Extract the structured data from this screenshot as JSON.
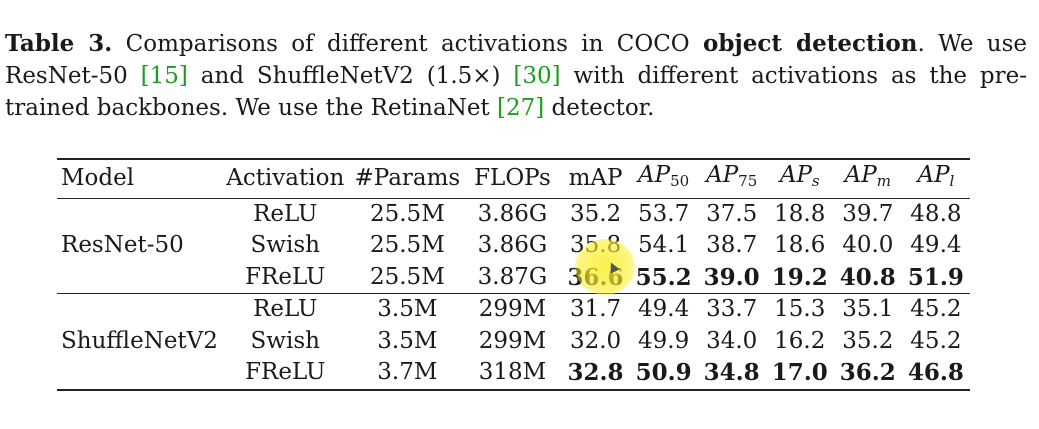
{
  "caption": {
    "label": "Table 3.",
    "text_1": " Comparisons of different activations in COCO ",
    "bold_phrase": "object detection",
    "text_2": ". We use ResNet-50 ",
    "cite_1": "[15]",
    "text_3": " and ShuffleNetV2 (1.5×) ",
    "cite_2": "[30]",
    "text_4": " with different activations as the pre-trained backbones. We use the RetinaNet ",
    "cite_3": "[27]",
    "text_5": " detector."
  },
  "table": {
    "headers": {
      "model": "Model",
      "activation": "Activation",
      "params": "#Params",
      "flops": "FLOPs",
      "map": "mAP",
      "ap_main": "AP",
      "ap50_sub": "50",
      "ap75_sub": "75",
      "aps_sub": "s",
      "apm_sub": "m",
      "apl_sub": "l"
    },
    "groups": [
      {
        "model": "ResNet-50",
        "rows": [
          {
            "activation": "ReLU",
            "params": "25.5M",
            "flops": "3.86G",
            "map": "35.2",
            "ap50": "53.7",
            "ap75": "37.5",
            "aps": "18.8",
            "apm": "39.7",
            "apl": "48.8"
          },
          {
            "activation": "Swish",
            "params": "25.5M",
            "flops": "3.86G",
            "map": "35.8",
            "ap50": "54.1",
            "ap75": "38.7",
            "aps": "18.6",
            "apm": "40.0",
            "apl": "49.4"
          },
          {
            "activation": "FReLU",
            "params": "25.5M",
            "flops": "3.87G",
            "map": "36.6",
            "ap50": "55.2",
            "ap75": "39.0",
            "aps": "19.2",
            "apm": "40.8",
            "apl": "51.9"
          }
        ]
      },
      {
        "model": "ShuffleNetV2",
        "rows": [
          {
            "activation": "ReLU",
            "params": "3.5M",
            "flops": "299M",
            "map": "31.7",
            "ap50": "49.4",
            "ap75": "33.7",
            "aps": "15.3",
            "apm": "35.1",
            "apl": "45.2"
          },
          {
            "activation": "Swish",
            "params": "3.5M",
            "flops": "299M",
            "map": "32.0",
            "ap50": "49.9",
            "ap75": "34.0",
            "aps": "16.2",
            "apm": "35.2",
            "apl": "45.2"
          },
          {
            "activation": "FReLU",
            "params": "3.7M",
            "flops": "318M",
            "map": "32.8",
            "ap50": "50.9",
            "ap75": "34.8",
            "aps": "17.0",
            "apm": "36.2",
            "apl": "46.8"
          }
        ]
      }
    ]
  },
  "overlay": {
    "highlight_color": "#faee28"
  }
}
